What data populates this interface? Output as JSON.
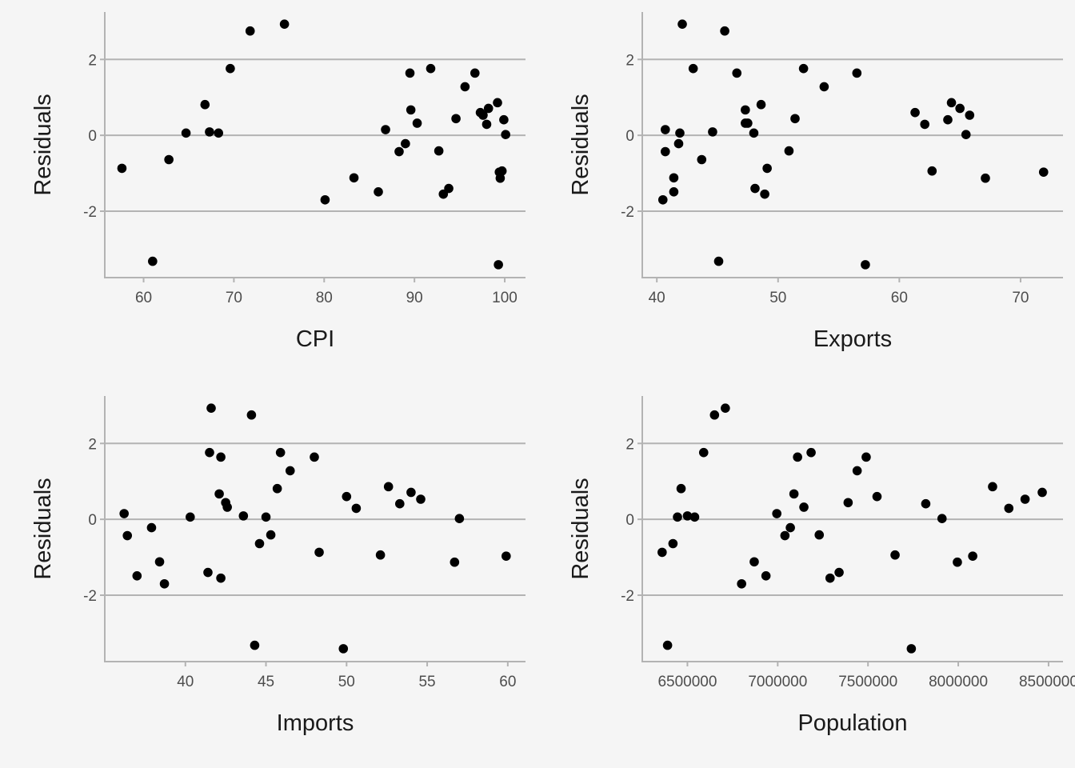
{
  "chart_data": [
    {
      "type": "scatter",
      "xlabel": "CPI",
      "ylabel": "Residuals",
      "xlim": [
        55.7,
        102.3
      ],
      "ylim": [
        -3.75,
        3.25
      ],
      "xticks": [
        60,
        70,
        80,
        90,
        100
      ],
      "yticks": [
        -2,
        0,
        2
      ],
      "ygrid": true,
      "x": [
        57.6,
        61.0,
        62.8,
        64.7,
        66.8,
        67.3,
        68.3,
        69.6,
        71.8,
        75.6,
        80.1,
        83.3,
        86.0,
        86.8,
        88.3,
        89.0,
        89.5,
        89.6,
        90.3,
        91.8,
        92.7,
        93.2,
        93.8,
        94.6,
        95.6,
        96.7,
        97.3,
        97.6,
        98.0,
        98.2,
        99.2,
        99.3,
        99.5,
        99.4,
        99.7,
        99.9,
        100.1
      ],
      "y": [
        -0.87,
        -3.32,
        -0.64,
        0.06,
        0.81,
        0.09,
        0.06,
        1.76,
        2.75,
        2.93,
        -1.7,
        -1.12,
        -1.49,
        0.15,
        -0.43,
        -0.22,
        1.64,
        0.67,
        0.32,
        1.76,
        -0.41,
        -1.55,
        -1.4,
        0.44,
        1.28,
        1.64,
        0.6,
        0.53,
        0.29,
        0.71,
        0.86,
        -3.41,
        -1.13,
        -0.97,
        -0.94,
        0.41,
        0.02
      ]
    },
    {
      "type": "scatter",
      "xlabel": "Exports",
      "ylabel": "Residuals",
      "xlim": [
        38.8,
        73.5
      ],
      "ylim": [
        -3.75,
        3.25
      ],
      "xticks": [
        40,
        50,
        60,
        70
      ],
      "yticks": [
        -2,
        0,
        2
      ],
      "ygrid": true,
      "x": [
        40.5,
        40.7,
        40.7,
        41.4,
        41.4,
        41.8,
        41.9,
        42.1,
        43.0,
        43.7,
        44.6,
        45.1,
        45.6,
        46.6,
        47.3,
        47.3,
        47.5,
        48.0,
        48.1,
        48.6,
        48.9,
        49.1,
        50.9,
        51.4,
        52.1,
        53.8,
        56.5,
        57.2,
        61.3,
        62.1,
        62.7,
        64.0,
        64.3,
        65.0,
        65.5,
        65.8,
        67.1,
        71.9
      ],
      "y": [
        -1.7,
        0.15,
        -0.43,
        -1.12,
        -1.49,
        -0.22,
        0.06,
        2.93,
        1.76,
        -0.64,
        0.09,
        -3.32,
        2.75,
        1.64,
        0.67,
        0.32,
        0.32,
        0.06,
        -1.4,
        0.81,
        -1.55,
        -0.87,
        -0.41,
        0.44,
        1.76,
        1.28,
        1.64,
        -3.41,
        0.6,
        0.29,
        -0.94,
        0.41,
        0.86,
        0.71,
        0.02,
        0.53,
        -1.13,
        -0.97
      ]
    },
    {
      "type": "scatter",
      "xlabel": "Imports",
      "ylabel": "Residuals",
      "xlim": [
        35.0,
        61.1
      ],
      "ylim": [
        -3.75,
        3.25
      ],
      "xticks": [
        40,
        45,
        50,
        55,
        60
      ],
      "yticks": [
        -2,
        0,
        2
      ],
      "ygrid": true,
      "x": [
        36.2,
        36.4,
        37.0,
        37.9,
        38.4,
        38.7,
        40.3,
        41.4,
        41.5,
        41.6,
        42.1,
        42.2,
        42.2,
        42.5,
        42.6,
        43.6,
        44.1,
        44.3,
        44.6,
        45.0,
        45.3,
        45.7,
        45.9,
        46.5,
        48.0,
        48.3,
        49.8,
        50.0,
        50.6,
        52.1,
        52.6,
        53.3,
        54.0,
        54.6,
        56.7,
        57.0,
        59.9
      ],
      "y": [
        0.15,
        -0.43,
        -1.49,
        -0.22,
        -1.12,
        -1.7,
        0.06,
        -1.4,
        1.76,
        2.93,
        0.67,
        1.64,
        -1.55,
        0.44,
        0.32,
        0.09,
        2.75,
        -3.32,
        -0.64,
        0.06,
        -0.41,
        0.81,
        1.76,
        1.28,
        1.64,
        -0.87,
        -3.41,
        0.6,
        0.29,
        -0.94,
        0.86,
        0.41,
        0.71,
        0.53,
        -1.13,
        0.02,
        -0.97
      ]
    },
    {
      "type": "scatter",
      "xlabel": "Population",
      "ylabel": "Residuals",
      "xlim": [
        6250000,
        8580000
      ],
      "ylim": [
        -3.75,
        3.25
      ],
      "xticks": [
        6500000,
        7000000,
        7500000,
        8000000,
        8500000
      ],
      "yticks": [
        -2,
        0,
        2
      ],
      "ygrid": true,
      "x": [
        6360000,
        6390000,
        6420000,
        6445000,
        6465000,
        6500000,
        6540000,
        6590000,
        6650000,
        6710000,
        6800000,
        6870000,
        6935000,
        6995000,
        7040000,
        7070000,
        7090000,
        7110000,
        7145000,
        7185000,
        7230000,
        7290000,
        7340000,
        7390000,
        7440000,
        7490000,
        7550000,
        7650000,
        7740000,
        7820000,
        7910000,
        7995000,
        8080000,
        8190000,
        8280000,
        8370000,
        8465000
      ],
      "y": [
        -0.87,
        -3.32,
        -0.64,
        0.06,
        0.81,
        0.09,
        0.06,
        1.76,
        2.75,
        2.93,
        -1.7,
        -1.12,
        -1.49,
        0.15,
        -0.43,
        -0.22,
        0.67,
        1.64,
        0.32,
        1.76,
        -0.41,
        -1.55,
        -1.4,
        0.44,
        1.28,
        1.64,
        0.6,
        -0.94,
        -3.41,
        0.41,
        0.02,
        -1.13,
        -0.97,
        0.86,
        0.29,
        0.53,
        0.71
      ]
    }
  ]
}
